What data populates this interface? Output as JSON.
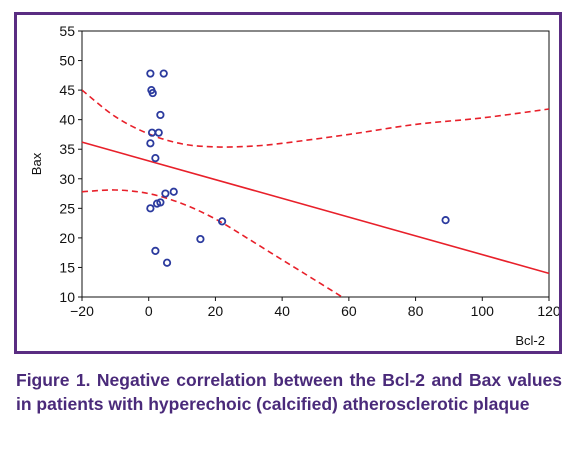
{
  "chart_data": {
    "type": "scatter",
    "title": "",
    "xlabel": "Bcl-2",
    "ylabel": "Bax",
    "xlim": [
      -20,
      120
    ],
    "ylim": [
      10,
      55
    ],
    "xticks": [
      -20,
      0,
      20,
      40,
      60,
      80,
      100,
      120
    ],
    "yticks": [
      10,
      15,
      20,
      25,
      30,
      35,
      40,
      45,
      50,
      55
    ],
    "grid": false,
    "legend": "none",
    "points": [
      {
        "x": 0.5,
        "y": 47.8
      },
      {
        "x": 4.5,
        "y": 47.8
      },
      {
        "x": 0.8,
        "y": 45.0
      },
      {
        "x": 1.2,
        "y": 44.5
      },
      {
        "x": 3.5,
        "y": 40.8
      },
      {
        "x": 1.0,
        "y": 37.8
      },
      {
        "x": 3.0,
        "y": 37.8
      },
      {
        "x": 0.5,
        "y": 36.0
      },
      {
        "x": 2.0,
        "y": 33.5
      },
      {
        "x": 5.0,
        "y": 27.5
      },
      {
        "x": 7.5,
        "y": 27.8
      },
      {
        "x": 3.5,
        "y": 26.0
      },
      {
        "x": 2.5,
        "y": 25.8
      },
      {
        "x": 0.5,
        "y": 25.0
      },
      {
        "x": 22.0,
        "y": 22.8
      },
      {
        "x": 15.5,
        "y": 19.8
      },
      {
        "x": 2.0,
        "y": 17.8
      },
      {
        "x": 5.5,
        "y": 15.8
      },
      {
        "x": 89.0,
        "y": 23.0
      }
    ],
    "regression_line": {
      "x": [
        -20,
        120
      ],
      "y": [
        36.2,
        14.0
      ]
    },
    "confidence_band_upper": {
      "x": [
        -20,
        -10,
        0,
        10,
        20,
        30,
        40,
        60,
        80,
        100,
        120
      ],
      "y": [
        45.0,
        40.5,
        37.6,
        35.9,
        35.4,
        35.5,
        36.0,
        37.5,
        39.2,
        40.3,
        41.8
      ]
    },
    "confidence_band_lower": {
      "x": [
        -20,
        -10,
        0,
        10,
        20,
        30,
        40,
        50,
        58
      ],
      "y": [
        27.8,
        28.1,
        27.5,
        25.8,
        23.2,
        19.8,
        16.3,
        12.8,
        10.0
      ]
    },
    "colors": {
      "points": "#2b3a9e",
      "line": "#e8202a",
      "frame": "#5a2d82",
      "caption": "#4a2a7a"
    }
  },
  "caption": "Figure 1. Negative correlation between the Bcl-2 and Bax values in patients with hyperechoic (calcified) atherosclerotic plaque"
}
